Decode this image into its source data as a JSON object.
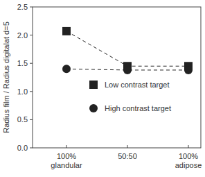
{
  "chart_data": {
    "type": "line",
    "y_label": "Radius film / Radius digitalat d=5",
    "categories": [
      "100%\nglandular",
      "50:50",
      "100%\nadipose"
    ],
    "series": [
      {
        "name": "Low contrast target",
        "color": "#222222",
        "marker": "square",
        "line_style": "dashed",
        "values": [
          2.07,
          1.45,
          1.45
        ]
      },
      {
        "name": "High contrast target",
        "color": "#222222",
        "marker": "circle",
        "line_style": "dashed",
        "values": [
          1.4,
          1.38,
          1.38
        ]
      }
    ],
    "ylim": [
      0,
      2.5
    ],
    "yticks": [
      {
        "value": 0,
        "label": "0.0"
      },
      0.5,
      {
        "value": 1,
        "label": "1.0"
      },
      1.5,
      {
        "value": 2,
        "label": "2.0"
      },
      2.5
    ],
    "legend": "center"
  }
}
